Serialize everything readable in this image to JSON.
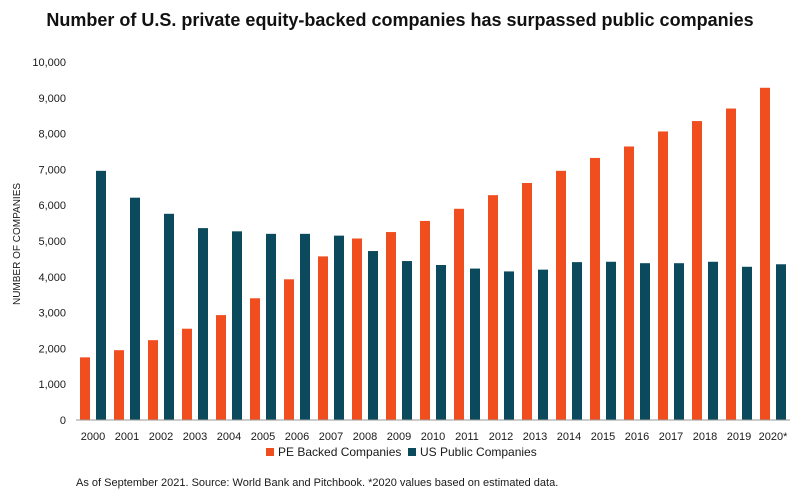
{
  "chart_data": {
    "type": "bar",
    "title": "Number of U.S. private equity-backed companies has surpassed public companies",
    "ylabel": "NUMBER OF COMPANIES",
    "xlabel": "",
    "ylim": [
      0,
      10000
    ],
    "yticks": [
      "0",
      "1,000",
      "2,000",
      "3,000",
      "4,000",
      "5,000",
      "6,000",
      "7,000",
      "8,000",
      "9,000",
      "10,000"
    ],
    "categories": [
      "2000",
      "2001",
      "2002",
      "2003",
      "2004",
      "2005",
      "2006",
      "2007",
      "2008",
      "2009",
      "2010",
      "2011",
      "2012",
      "2013",
      "2014",
      "2015",
      "2016",
      "2017",
      "2018",
      "2019",
      "2020*"
    ],
    "series": [
      {
        "name": "PE Backed Companies",
        "color": "#f04e1f",
        "values": [
          1750,
          1950,
          2230,
          2550,
          2930,
          3400,
          3930,
          4570,
          5070,
          5250,
          5560,
          5900,
          6280,
          6620,
          6960,
          7320,
          7640,
          8060,
          8350,
          8700,
          9280
        ]
      },
      {
        "name": "US Public Companies",
        "color": "#0b4a5c",
        "values": [
          6960,
          6210,
          5760,
          5360,
          5270,
          5200,
          5200,
          5150,
          4720,
          4440,
          4330,
          4230,
          4150,
          4200,
          4410,
          4420,
          4380,
          4380,
          4420,
          4280,
          4350
        ]
      }
    ],
    "grid": false,
    "legend_position": "bottom"
  },
  "footnote": "As of September 2021. Source: World Bank and Pitchbook.  *2020 values based on estimated data."
}
